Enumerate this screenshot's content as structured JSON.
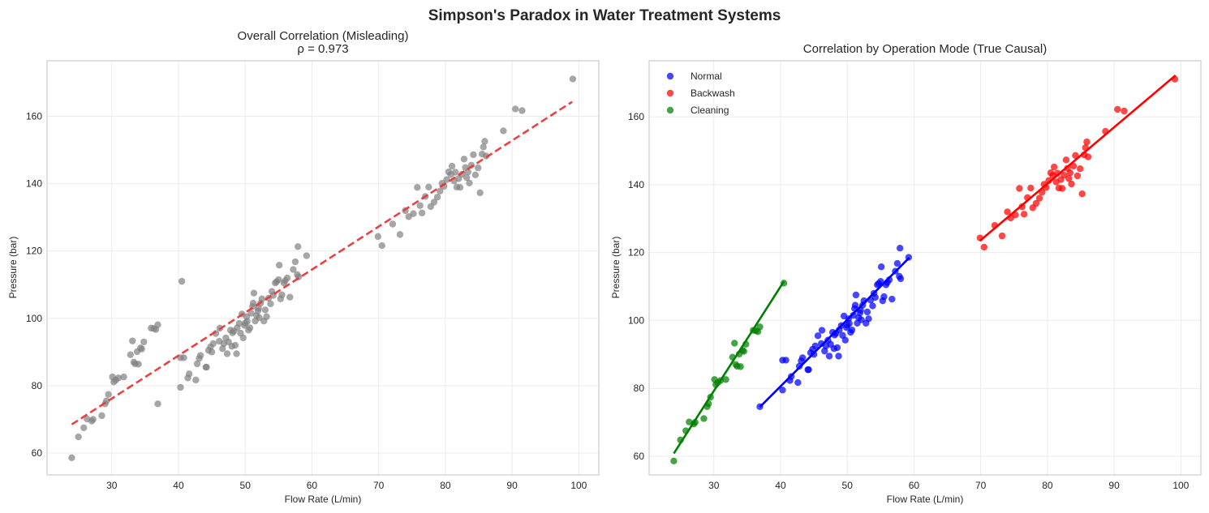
{
  "figure": {
    "suptitle": "Simpson's Paradox in Water Treatment Systems"
  },
  "colors": {
    "overall_points": "#808080",
    "overall_fit": "#e83838",
    "Normal": "#0000ff",
    "Backwash": "#ff0000",
    "Cleaning": "#008000",
    "grid": "#ebebeb",
    "frame": "#cccccc"
  },
  "chart_data": [
    {
      "type": "scatter",
      "id": "overall",
      "title": "Overall Correlation (Misleading)",
      "subtitle": "ρ = 0.973",
      "xlabel": "Flow Rate (L/min)",
      "ylabel": "Pressure (bar)",
      "xlim": [
        20.3,
        103
      ],
      "ylim": [
        53.5,
        176.5
      ],
      "xticks": [
        30,
        40,
        50,
        60,
        70,
        80,
        90,
        100
      ],
      "yticks": [
        60,
        80,
        100,
        120,
        140,
        160
      ],
      "grid": true,
      "fit_line": {
        "x": [
          24,
          99
        ],
        "y": [
          68.5,
          164.3
        ],
        "style": "dashed"
      },
      "series_ref": [
        "Normal",
        "Backwash",
        "Cleaning"
      ]
    },
    {
      "type": "scatter",
      "id": "by_mode",
      "title": "Correlation by Operation Mode (True Causal)",
      "xlabel": "Flow Rate (L/min)",
      "ylabel": "Pressure (bar)",
      "xlim": [
        20.3,
        103
      ],
      "ylim": [
        54.5,
        176.5
      ],
      "xticks": [
        30,
        40,
        50,
        60,
        70,
        80,
        90,
        100
      ],
      "yticks": [
        60,
        80,
        100,
        120,
        140,
        160
      ],
      "grid": true,
      "legend": {
        "placement": "top-left",
        "entries": [
          "Normal",
          "Backwash",
          "Cleaning"
        ]
      },
      "fit_lines": {
        "Normal": {
          "x": [
            36.9,
            59.3
          ],
          "y": [
            74.5,
            118.5
          ]
        },
        "Backwash": {
          "x": [
            69.9,
            99.2
          ],
          "y": [
            123.5,
            172.2
          ]
        },
        "Cleaning": {
          "x": [
            24,
            40.5
          ],
          "y": [
            60.8,
            111.5
          ]
        }
      }
    }
  ],
  "series": [
    {
      "name": "Normal",
      "points": [
        [
          36.9,
          74.6
        ],
        [
          40.3,
          79.5
        ],
        [
          40.3,
          88.3
        ],
        [
          40.8,
          88.3
        ],
        [
          41.4,
          82.3
        ],
        [
          41.6,
          83.5
        ],
        [
          42.6,
          81.7
        ],
        [
          42.8,
          86.5
        ],
        [
          43.1,
          88.1
        ],
        [
          43.3,
          89
        ],
        [
          44.1,
          85.5
        ],
        [
          44.2,
          85.5
        ],
        [
          44.5,
          90.5
        ],
        [
          44.8,
          91.5
        ],
        [
          45,
          90
        ],
        [
          45.2,
          92.5
        ],
        [
          45.6,
          95.5
        ],
        [
          46.1,
          93.2
        ],
        [
          46.2,
          97.1
        ],
        [
          46.6,
          91
        ],
        [
          46.8,
          92.5
        ],
        [
          47.1,
          94.2
        ],
        [
          47.3,
          89.5
        ],
        [
          47.5,
          93
        ],
        [
          47.8,
          96.5
        ],
        [
          48,
          91.7
        ],
        [
          48.1,
          95.7
        ],
        [
          48.3,
          96.2
        ],
        [
          48.5,
          92
        ],
        [
          48.7,
          89.5
        ],
        [
          48.8,
          97.2
        ],
        [
          49.1,
          98.5
        ],
        [
          49.3,
          95.6
        ],
        [
          49.5,
          101.3
        ],
        [
          49.7,
          94.2
        ],
        [
          49.9,
          97.9
        ],
        [
          50,
          98.6
        ],
        [
          50.2,
          100.5
        ],
        [
          50.3,
          99.1
        ],
        [
          50.5,
          96.5
        ],
        [
          50.7,
          97.2
        ],
        [
          50.9,
          101.5
        ],
        [
          51.1,
          103.5
        ],
        [
          51.2,
          104.5
        ],
        [
          51.3,
          107.5
        ],
        [
          51.5,
          99.2
        ],
        [
          51.7,
          100.8
        ],
        [
          51.9,
          102.2
        ],
        [
          52,
          103
        ],
        [
          52.1,
          100.2
        ],
        [
          52.3,
          104.5
        ],
        [
          52.5,
          105.8
        ],
        [
          52.8,
          99.2
        ],
        [
          53,
          102.5
        ],
        [
          53.2,
          100.5
        ],
        [
          53.5,
          106
        ],
        [
          53.8,
          104.3
        ],
        [
          54,
          108
        ],
        [
          54.2,
          106.8
        ],
        [
          54.5,
          110.5
        ],
        [
          54.7,
          110.9
        ],
        [
          55,
          111.5
        ],
        [
          55.1,
          115.8
        ],
        [
          55.3,
          105.8
        ],
        [
          55.5,
          107
        ],
        [
          55.8,
          110.5
        ],
        [
          56,
          111.2
        ],
        [
          56.3,
          112
        ],
        [
          56.7,
          106.3
        ],
        [
          57.2,
          114.5
        ],
        [
          57.5,
          116.8
        ],
        [
          57.8,
          113
        ],
        [
          57.9,
          121.3
        ],
        [
          58,
          112.3
        ],
        [
          59.2,
          118.6
        ]
      ]
    },
    {
      "name": "Backwash",
      "points": [
        [
          69.9,
          124.3
        ],
        [
          70.5,
          121.6
        ],
        [
          72.1,
          128
        ],
        [
          73.2,
          124.9
        ],
        [
          74,
          132
        ],
        [
          74.5,
          130.2
        ],
        [
          75.2,
          131.1
        ],
        [
          75.8,
          138.9
        ],
        [
          76.2,
          133.5
        ],
        [
          76.5,
          131.3
        ],
        [
          77,
          136.2
        ],
        [
          77.5,
          139
        ],
        [
          77.8,
          133.2
        ],
        [
          78.3,
          134.5
        ],
        [
          78.8,
          136
        ],
        [
          79.2,
          137.8
        ],
        [
          79.5,
          140.1
        ],
        [
          79.8,
          139.2
        ],
        [
          80.2,
          141.2
        ],
        [
          80.5,
          143.5
        ],
        [
          80.8,
          142.7
        ],
        [
          81,
          145.2
        ],
        [
          81.3,
          140.8
        ],
        [
          81.5,
          143.4
        ],
        [
          81.7,
          139
        ],
        [
          82,
          141.5
        ],
        [
          82.2,
          138.9
        ],
        [
          82.5,
          142.8
        ],
        [
          82.8,
          147.3
        ],
        [
          83,
          144.8
        ],
        [
          83.2,
          141.8
        ],
        [
          83.4,
          143.5
        ],
        [
          83.6,
          140.2
        ],
        [
          83.9,
          145.5
        ],
        [
          84.2,
          148.6
        ],
        [
          84.5,
          142.6
        ],
        [
          84.9,
          144.7
        ],
        [
          85.2,
          137.3
        ],
        [
          85.5,
          148.8
        ],
        [
          85.7,
          150.9
        ],
        [
          85.9,
          152.6
        ],
        [
          86.1,
          148.2
        ],
        [
          88.7,
          155.7
        ],
        [
          90.5,
          162.2
        ],
        [
          91.5,
          161.7
        ],
        [
          99.1,
          171.1
        ]
      ]
    },
    {
      "name": "Cleaning",
      "points": [
        [
          24,
          58.6
        ],
        [
          25,
          64.8
        ],
        [
          25.8,
          67.5
        ],
        [
          26.3,
          70.1
        ],
        [
          27,
          69.5
        ],
        [
          27.2,
          70
        ],
        [
          28.5,
          71.1
        ],
        [
          29,
          74.6
        ],
        [
          29.2,
          75.5
        ],
        [
          29.5,
          77.4
        ],
        [
          30.1,
          82.6
        ],
        [
          30.3,
          81.1
        ],
        [
          30.6,
          81.7
        ],
        [
          31,
          82.3
        ],
        [
          31.8,
          82.6
        ],
        [
          32.8,
          89.2
        ],
        [
          33.1,
          93.3
        ],
        [
          33.3,
          87
        ],
        [
          33.5,
          86.5
        ],
        [
          33.8,
          90.1
        ],
        [
          34,
          86.4
        ],
        [
          34.3,
          91.2
        ],
        [
          34.5,
          90.9
        ],
        [
          34.8,
          93
        ],
        [
          35.9,
          97.1
        ],
        [
          36.3,
          97
        ],
        [
          36.6,
          96.7
        ],
        [
          36.9,
          98.1
        ],
        [
          40.5,
          111
        ]
      ]
    }
  ]
}
